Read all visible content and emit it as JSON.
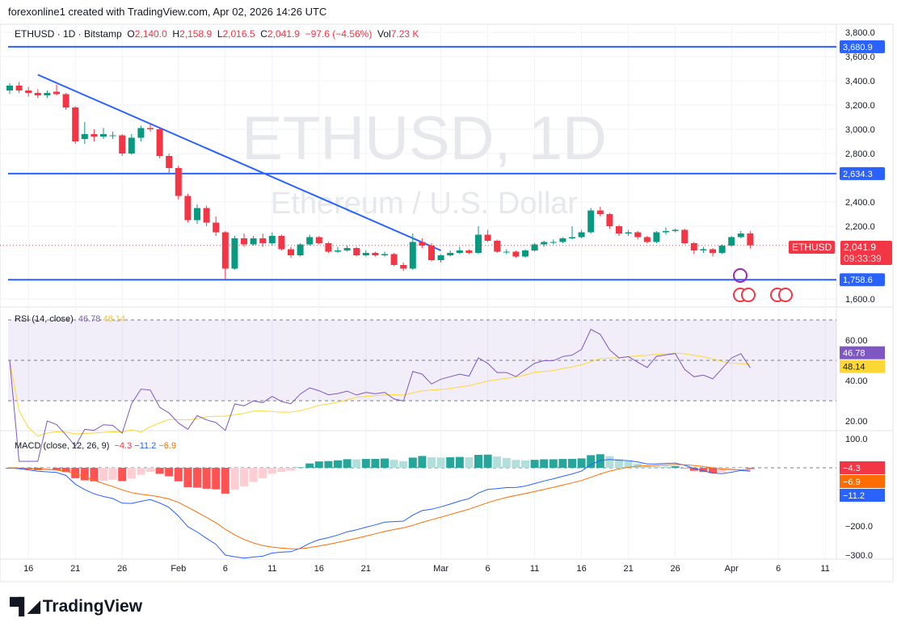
{
  "credit": "forexonline1 created with TradingView.com, Apr 02, 2026 14:26 UTC",
  "legend": {
    "symbol": "ETHUSD · 1D · Bitstamp",
    "o_label": "O",
    "o": "2,140.0",
    "h_label": "H",
    "h": "2,158.9",
    "l_label": "L",
    "l": "2,016.5",
    "c_label": "C",
    "c": "2,041.9",
    "change": "−97.6 (−4.56%)",
    "vol_label": "Vol",
    "vol": "7.23 K"
  },
  "watermark": {
    "title": "ETHUSD, 1D",
    "subtitle": "Ethereum / U.S. Dollar"
  },
  "price_tag": {
    "symbol": "ETHUSD",
    "price": "2,041.9",
    "countdown": "09:33:39"
  },
  "colors": {
    "up": "#089981",
    "down": "#f23645",
    "line": "#2962ff",
    "rsi": "#7e57c2",
    "rsi_ma": "#fdd835",
    "macd": "#2962ff",
    "signal": "#ff6d00"
  },
  "rsi": {
    "label": "RSI (14, close)",
    "value": "46.78",
    "ma": "48.14"
  },
  "macd": {
    "label": "MACD (close, 12, 26, 9)",
    "hist": "−4.3",
    "macd": "−11.2",
    "signal": "−6.9"
  },
  "logo": "TradingView",
  "chart_data": {
    "type": "candlestick",
    "title": "ETHUSD, 1D",
    "price_axis": [
      "3,800.0",
      "3,600.0",
      "3,400.0",
      "3,200.0",
      "3,000.0",
      "2,800.0",
      "2,400.0",
      "2,200.0",
      "1,600.0"
    ],
    "price_ticks": [
      3800,
      3600,
      3400,
      3200,
      3000,
      2800,
      2400,
      2200,
      1600
    ],
    "hlines": [
      {
        "value": 3680.9,
        "label": "3,680.9"
      },
      {
        "value": 2634.3,
        "label": "2,634.3"
      },
      {
        "value": 1758.6,
        "label": "1,758.6"
      }
    ],
    "trendline": [
      [
        3,
        3450
      ],
      [
        46,
        2000
      ]
    ],
    "rsi_ticks": [
      {
        "v": 60,
        "l": "60.00"
      },
      {
        "v": 40,
        "l": "40.00"
      },
      {
        "v": 20,
        "l": "20.00"
      }
    ],
    "macd_ticks": [
      {
        "v": 100,
        "l": "100.0"
      },
      {
        "v": -200,
        "l": "−200.0"
      },
      {
        "v": -300,
        "l": "−300.0"
      }
    ],
    "x_labels": [
      {
        "d": 2,
        "l": "16"
      },
      {
        "d": 7,
        "l": "21"
      },
      {
        "d": 12,
        "l": "26"
      },
      {
        "d": 18,
        "l": "Feb"
      },
      {
        "d": 23,
        "l": "6"
      },
      {
        "d": 28,
        "l": "11"
      },
      {
        "d": 33,
        "l": "16"
      },
      {
        "d": 38,
        "l": "21"
      },
      {
        "d": 46,
        "l": "Mar"
      },
      {
        "d": 51,
        "l": "6"
      },
      {
        "d": 56,
        "l": "11"
      },
      {
        "d": 61,
        "l": "16"
      },
      {
        "d": 66,
        "l": "21"
      },
      {
        "d": 71,
        "l": "26"
      },
      {
        "d": 77,
        "l": "Apr"
      },
      {
        "d": 82,
        "l": "6"
      },
      {
        "d": 87,
        "l": "11"
      }
    ],
    "ohlc": [
      [
        3320,
        3380,
        3290,
        3360
      ],
      [
        3360,
        3390,
        3300,
        3320
      ],
      [
        3320,
        3350,
        3270,
        3300
      ],
      [
        3300,
        3330,
        3260,
        3280
      ],
      [
        3280,
        3320,
        3260,
        3300
      ],
      [
        3310,
        3370,
        3280,
        3290
      ],
      [
        3290,
        3300,
        3160,
        3180
      ],
      [
        3180,
        3190,
        2880,
        2900
      ],
      [
        2920,
        3060,
        2880,
        2960
      ],
      [
        2960,
        3000,
        2900,
        2940
      ],
      [
        2940,
        3010,
        2920,
        2960
      ],
      [
        2950,
        2980,
        2920,
        2950
      ],
      [
        2950,
        2960,
        2780,
        2800
      ],
      [
        2800,
        2960,
        2790,
        2930
      ],
      [
        2930,
        3030,
        2900,
        3010
      ],
      [
        3010,
        3040,
        2980,
        3000
      ],
      [
        3000,
        3010,
        2760,
        2780
      ],
      [
        2780,
        2800,
        2640,
        2680
      ],
      [
        2680,
        2700,
        2420,
        2450
      ],
      [
        2450,
        2470,
        2230,
        2250
      ],
      [
        2250,
        2380,
        2220,
        2350
      ],
      [
        2350,
        2370,
        2200,
        2230
      ],
      [
        2230,
        2280,
        2120,
        2150
      ],
      [
        2150,
        2160,
        1760,
        1850
      ],
      [
        1850,
        2120,
        1840,
        2100
      ],
      [
        2100,
        2140,
        2030,
        2050
      ],
      [
        2050,
        2120,
        2040,
        2100
      ],
      [
        2100,
        2140,
        2030,
        2060
      ],
      [
        2060,
        2150,
        2040,
        2120
      ],
      [
        2120,
        2130,
        2000,
        2010
      ],
      [
        2010,
        2030,
        1940,
        1960
      ],
      [
        1960,
        2060,
        1950,
        2050
      ],
      [
        2050,
        2130,
        2040,
        2110
      ],
      [
        2110,
        2120,
        2050,
        2060
      ],
      [
        2060,
        2070,
        1980,
        1990
      ],
      [
        1990,
        2030,
        1980,
        2000
      ],
      [
        2000,
        2040,
        1990,
        2020
      ],
      [
        2020,
        2030,
        1950,
        1960
      ],
      [
        1960,
        2000,
        1950,
        1980
      ],
      [
        1980,
        1990,
        1950,
        1960
      ],
      [
        1960,
        1990,
        1950,
        1970
      ],
      [
        1970,
        1980,
        1870,
        1880
      ],
      [
        1880,
        1900,
        1830,
        1850
      ],
      [
        1850,
        2140,
        1840,
        2070
      ],
      [
        2070,
        2100,
        2020,
        2040
      ],
      [
        2040,
        2060,
        1910,
        1920
      ],
      [
        1920,
        1970,
        1900,
        1960
      ],
      [
        1960,
        2000,
        1950,
        1980
      ],
      [
        1980,
        2030,
        1970,
        2000
      ],
      [
        2000,
        2010,
        1970,
        1980
      ],
      [
        1980,
        2200,
        1970,
        2130
      ],
      [
        2130,
        2170,
        2070,
        2080
      ],
      [
        2080,
        2090,
        1980,
        1990
      ],
      [
        1990,
        2010,
        1970,
        1990
      ],
      [
        1990,
        2000,
        1940,
        1950
      ],
      [
        1950,
        2010,
        1940,
        2000
      ],
      [
        2000,
        2060,
        1990,
        2050
      ],
      [
        2050,
        2080,
        2030,
        2070
      ],
      [
        2070,
        2090,
        2050,
        2070
      ],
      [
        2070,
        2110,
        2060,
        2100
      ],
      [
        2100,
        2200,
        2090,
        2110
      ],
      [
        2110,
        2170,
        2100,
        2150
      ],
      [
        2150,
        2350,
        2140,
        2330
      ],
      [
        2330,
        2360,
        2280,
        2300
      ],
      [
        2300,
        2310,
        2180,
        2200
      ],
      [
        2200,
        2210,
        2120,
        2140
      ],
      [
        2140,
        2170,
        2120,
        2150
      ],
      [
        2150,
        2160,
        2090,
        2110
      ],
      [
        2110,
        2120,
        2060,
        2070
      ],
      [
        2070,
        2160,
        2060,
        2150
      ],
      [
        2150,
        2190,
        2130,
        2160
      ],
      [
        2160,
        2180,
        2150,
        2170
      ],
      [
        2170,
        2180,
        2050,
        2060
      ],
      [
        2060,
        2070,
        1970,
        2000
      ],
      [
        2000,
        2030,
        1980,
        2010
      ],
      [
        2010,
        2020,
        1950,
        1980
      ],
      [
        1980,
        2050,
        1970,
        2040
      ],
      [
        2040,
        2120,
        2030,
        2110
      ],
      [
        2110,
        2160,
        2100,
        2140
      ],
      [
        2140,
        2158.9,
        2016.5,
        2041.9
      ]
    ]
  }
}
